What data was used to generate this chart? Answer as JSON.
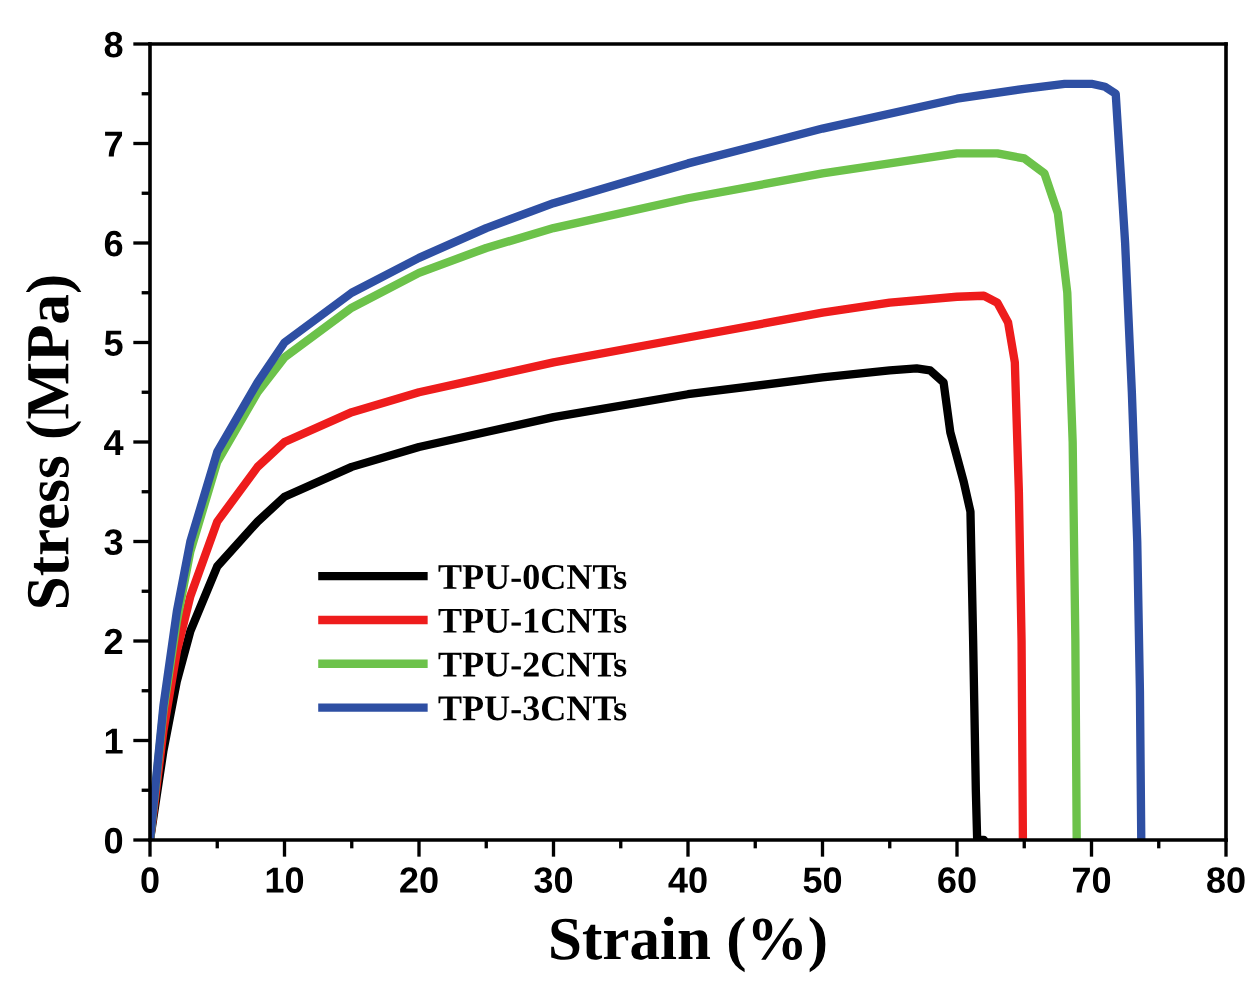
{
  "chart_data": {
    "type": "line",
    "xlabel": "Strain (%)",
    "ylabel": "Stress (MPa)",
    "xlim": [
      0,
      80
    ],
    "ylim": [
      0,
      8
    ],
    "xticks": [
      0,
      10,
      20,
      30,
      40,
      50,
      60,
      70,
      80
    ],
    "yticks": [
      0,
      1,
      2,
      3,
      4,
      5,
      6,
      7,
      8
    ],
    "grid": false,
    "legend": "lower left",
    "marker": "none",
    "line_style": "solid",
    "series": [
      {
        "name": "TPU-0CNTs",
        "color": "#000000",
        "x": [
          0,
          1,
          2,
          3,
          5,
          8,
          10,
          15,
          20,
          25,
          30,
          40,
          50,
          55,
          57,
          58,
          59,
          59.5,
          60.5,
          61,
          61.2,
          61.4,
          61.5,
          62
        ],
        "values": [
          0,
          0.9,
          1.6,
          2.1,
          2.75,
          3.2,
          3.45,
          3.75,
          3.95,
          4.1,
          4.25,
          4.48,
          4.65,
          4.72,
          4.74,
          4.72,
          4.6,
          4.1,
          3.6,
          3.3,
          2.0,
          0.5,
          0,
          0
        ]
      },
      {
        "name": "TPU-1CNTs",
        "color": "#ee1c1c",
        "x": [
          0,
          1,
          2,
          3,
          5,
          8,
          10,
          15,
          20,
          25,
          30,
          40,
          50,
          55,
          60,
          62,
          63,
          63.8,
          64.3,
          64.6,
          64.8,
          64.9
        ],
        "values": [
          0,
          1.1,
          1.9,
          2.45,
          3.2,
          3.75,
          4.0,
          4.3,
          4.5,
          4.65,
          4.8,
          5.05,
          5.3,
          5.4,
          5.46,
          5.47,
          5.4,
          5.2,
          4.8,
          3.5,
          2,
          0
        ]
      },
      {
        "name": "TPU-2CNTs",
        "color": "#6cc24a",
        "x": [
          0,
          1,
          2,
          3,
          5,
          8,
          10,
          15,
          20,
          25,
          30,
          40,
          50,
          55,
          60,
          63,
          65,
          66.5,
          67.5,
          68.2,
          68.6,
          68.8,
          68.9
        ],
        "values": [
          0,
          1.3,
          2.2,
          2.9,
          3.8,
          4.5,
          4.85,
          5.35,
          5.7,
          5.95,
          6.15,
          6.45,
          6.7,
          6.8,
          6.9,
          6.9,
          6.85,
          6.7,
          6.3,
          5.5,
          4.0,
          2,
          0
        ]
      },
      {
        "name": "TPU-3CNTs",
        "color": "#2e4fa3",
        "x": [
          0,
          1,
          2,
          3,
          5,
          8,
          10,
          15,
          20,
          25,
          30,
          40,
          50,
          60,
          65,
          68,
          70,
          71,
          71.8,
          72.5,
          73,
          73.4,
          73.6,
          73.7
        ],
        "values": [
          0,
          1.35,
          2.3,
          3.0,
          3.9,
          4.6,
          5.0,
          5.5,
          5.85,
          6.15,
          6.4,
          6.8,
          7.15,
          7.45,
          7.55,
          7.6,
          7.6,
          7.57,
          7.5,
          6.0,
          4.5,
          3.0,
          1.5,
          0
        ]
      }
    ]
  }
}
